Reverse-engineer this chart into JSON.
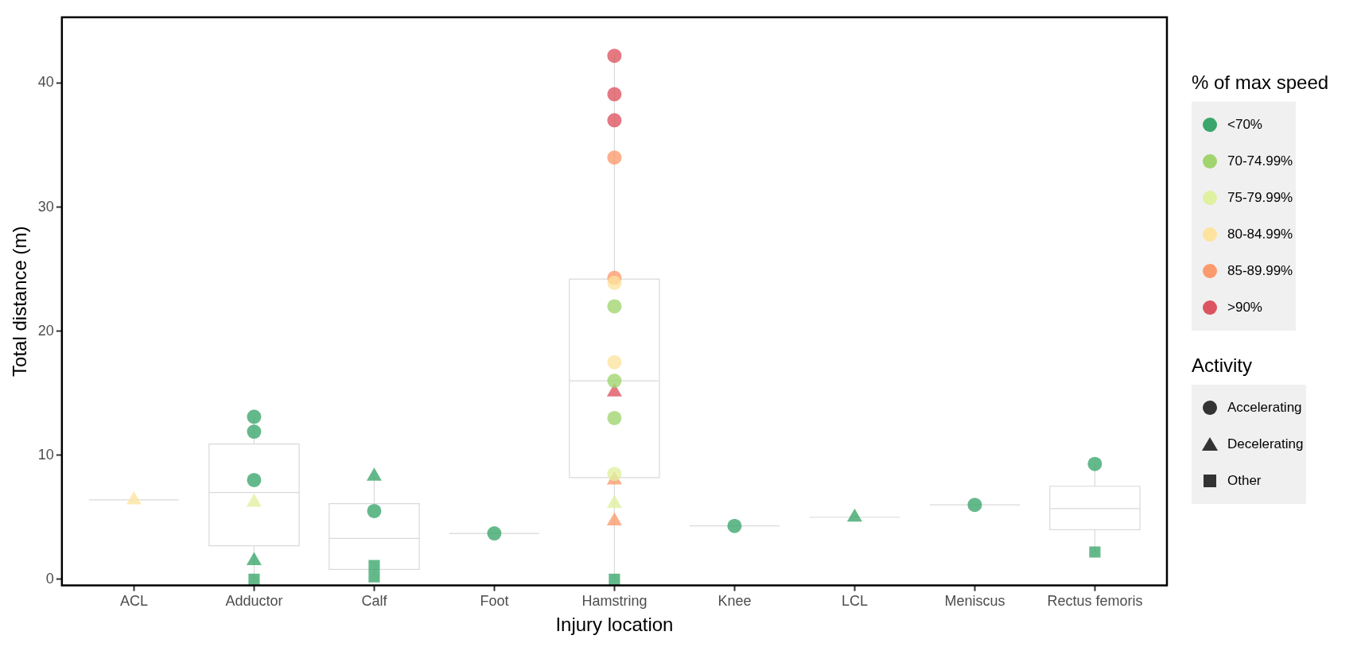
{
  "chart_data": {
    "type": "box",
    "xlabel": "Injury location",
    "ylabel": "Total distance (m)",
    "legend_title": "% of max speed",
    "annotations": [
      "Activity"
    ],
    "categories": [
      "ACL",
      "Adductor",
      "Calf",
      "Foot",
      "Hamstring",
      "Knee",
      "LCL",
      "Meniscus",
      "Rectus femoris"
    ],
    "ylim": [
      -0.5,
      45.3
    ],
    "yticks": [
      0,
      10,
      20,
      30,
      40
    ],
    "grid": false,
    "legend": "right",
    "boxes": [
      {
        "low": 6.4,
        "q1": 6.4,
        "median": 6.4,
        "q3": 6.4,
        "high": 6.4
      },
      {
        "low": 0,
        "q1": 2.7,
        "median": 7.0,
        "q3": 10.9,
        "high": 13.1
      },
      {
        "low": 0.2,
        "q1": 0.8,
        "median": 3.3,
        "q3": 6.1,
        "high": 8.3
      },
      {
        "low": 3.7,
        "q1": 3.7,
        "median": 3.7,
        "q3": 3.7,
        "high": 3.7
      },
      {
        "low": 0,
        "q1": 8.2,
        "median": 16.0,
        "q3": 24.2,
        "high": 42.2
      },
      {
        "low": 4.3,
        "q1": 4.3,
        "median": 4.3,
        "q3": 4.3,
        "high": 4.3
      },
      {
        "low": 5.0,
        "q1": 5.0,
        "median": 5.0,
        "q3": 5.0,
        "high": 5.0
      },
      {
        "low": 6.0,
        "q1": 6.0,
        "median": 6.0,
        "q3": 6.0,
        "high": 6.0
      },
      {
        "low": 2.2,
        "q1": 4.0,
        "median": 5.7,
        "q3": 7.5,
        "high": 9.3
      }
    ],
    "series": [
      {
        "type": "scatter",
        "name": "<70%",
        "color": "#3aa66b",
        "marker": "circle",
        "x": [
          "Adductor",
          "Adductor",
          "Adductor",
          "Calf",
          "Foot",
          "Knee",
          "Meniscus",
          "Rectus femoris"
        ],
        "values": [
          13.1,
          11.9,
          8.0,
          5.5,
          3.7,
          4.3,
          6.0,
          9.3
        ]
      },
      {
        "type": "scatter",
        "name": "70-74.99%",
        "color": "#a0d56e",
        "marker": "circle",
        "x": [
          "Hamstring",
          "Hamstring",
          "Hamstring"
        ],
        "values": [
          22.0,
          16.0,
          13.0
        ]
      },
      {
        "type": "scatter",
        "name": "75-79.99%",
        "color": "#dff0a0",
        "marker": "circle",
        "x": [
          "Hamstring"
        ],
        "values": [
          8.5
        ]
      },
      {
        "type": "scatter",
        "name": "80-84.99%",
        "color": "#fde39e",
        "marker": "circle",
        "x": [
          "Hamstring",
          "Hamstring"
        ],
        "values": [
          23.9,
          17.5
        ]
      },
      {
        "type": "scatter",
        "name": "85-89.99%",
        "color": "#fb9a6c",
        "marker": "circle",
        "x": [
          "Hamstring",
          "Hamstring"
        ],
        "values": [
          34.0,
          24.3
        ]
      },
      {
        "type": "scatter",
        "name": ">90%",
        "color": "#dc5460",
        "marker": "circle",
        "x": [
          "Hamstring",
          "Hamstring",
          "Hamstring"
        ],
        "values": [
          42.2,
          39.1,
          37.0
        ]
      },
      {
        "type": "scatter",
        "color": "#3aa66b",
        "marker": "triangle",
        "x": [
          "Adductor",
          "Calf",
          "LCL"
        ],
        "values": [
          1.5,
          8.3,
          5.0
        ]
      },
      {
        "type": "scatter",
        "color": "#dff0a0",
        "marker": "triangle",
        "x": [
          "Adductor",
          "Hamstring"
        ],
        "values": [
          6.2,
          6.1
        ]
      },
      {
        "type": "scatter",
        "color": "#fde39e",
        "marker": "triangle",
        "x": [
          "ACL"
        ],
        "values": [
          6.4
        ]
      },
      {
        "type": "scatter",
        "color": "#fb9a6c",
        "marker": "triangle",
        "x": [
          "Hamstring",
          "Hamstring"
        ],
        "values": [
          8.0,
          4.7
        ]
      },
      {
        "type": "scatter",
        "color": "#dc5460",
        "marker": "triangle",
        "x": [
          "Hamstring"
        ],
        "values": [
          15.1
        ]
      },
      {
        "type": "scatter",
        "color": "#3aa66b",
        "marker": "square",
        "x": [
          "Adductor",
          "Calf",
          "Calf",
          "Hamstring",
          "Rectus femoris"
        ],
        "values": [
          0,
          1.1,
          0.2,
          0,
          2.2
        ]
      },
      {
        "type": "scatter",
        "name": "Accelerating",
        "color": "#333333",
        "marker": "circle",
        "values": [
          null,
          null,
          null,
          null,
          null,
          null,
          null,
          null,
          null
        ]
      },
      {
        "type": "scatter",
        "name": "Decelerating",
        "color": "#333333",
        "marker": "triangle",
        "values": [
          null,
          null,
          null,
          null,
          null,
          null,
          null,
          null,
          null
        ]
      },
      {
        "type": "scatter",
        "name": "Other",
        "color": "#333333",
        "marker": "square",
        "values": [
          null,
          null,
          null,
          null,
          null,
          null,
          null,
          null,
          null
        ]
      }
    ]
  }
}
